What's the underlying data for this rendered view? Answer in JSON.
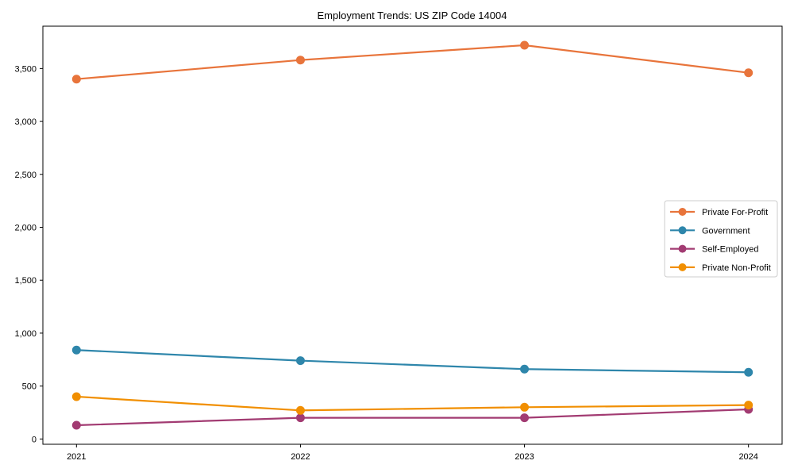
{
  "chart_data": {
    "type": "line",
    "title": "Employment Trends: US ZIP Code 14004",
    "x": [
      2021,
      2022,
      2023,
      2024
    ],
    "x_tick_labels": [
      "2021",
      "2022",
      "2023",
      "2024"
    ],
    "series": [
      {
        "name": "Private For-Profit",
        "color": "#e8743b",
        "values": [
          3400,
          3580,
          3720,
          3460
        ]
      },
      {
        "name": "Government",
        "color": "#2e86ab",
        "values": [
          840,
          740,
          660,
          630
        ]
      },
      {
        "name": "Self-Employed",
        "color": "#a23b72",
        "values": [
          130,
          200,
          200,
          280
        ]
      },
      {
        "name": "Private Non-Profit",
        "color": "#f18f01",
        "values": [
          400,
          270,
          300,
          320
        ]
      }
    ],
    "xlim": [
      2020.85,
      2024.15
    ],
    "ylim": [
      -50,
      3900
    ],
    "yticks": [
      0,
      500,
      1000,
      1500,
      2000,
      2500,
      3000,
      3500
    ],
    "ytick_labels": [
      "0",
      "500",
      "1,000",
      "1,500",
      "2,000",
      "2,500",
      "3,000",
      "3,500"
    ],
    "grid": false,
    "marker": "circle",
    "line_width": 2.2,
    "marker_radius": 5.5,
    "axis_color": "#000000",
    "legend": {
      "position": "center right",
      "border_color": "#cccccc",
      "background": "#ffffff"
    }
  }
}
